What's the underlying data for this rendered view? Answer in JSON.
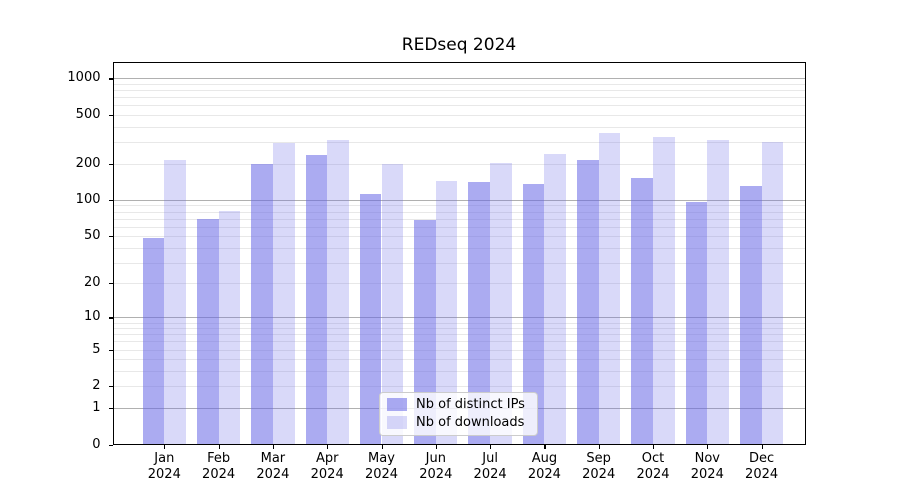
{
  "title": "REDseq 2024",
  "chart_data": {
    "type": "bar",
    "title": "REDseq 2024",
    "categories": [
      "Jan 2024",
      "Feb 2024",
      "Mar 2024",
      "Apr 2024",
      "May 2024",
      "Jun 2024",
      "Jul 2024",
      "Aug 2024",
      "Sep 2024",
      "Oct 2024",
      "Nov 2024",
      "Dec 2024"
    ],
    "series": [
      {
        "name": "Nb of distinct IPs",
        "color": "rgba(102,102,230,0.55)",
        "values": [
          48,
          70,
          200,
          235,
          112,
          68,
          142,
          135,
          213,
          151,
          96,
          131
        ]
      },
      {
        "name": "Nb of downloads",
        "color": "rgba(102,102,230,0.25)",
        "values": [
          215,
          81,
          296,
          310,
          199,
          144,
          203,
          240,
          357,
          330,
          310,
          301
        ]
      }
    ],
    "yscale": "log10(x+1)",
    "yticks": [
      0,
      1,
      2,
      5,
      10,
      20,
      50,
      100,
      200,
      500,
      1000
    ],
    "ylim": [
      0,
      1300
    ],
    "xlabel": "",
    "ylabel": "",
    "grid": true,
    "legend_position": "lower center"
  },
  "legend": {
    "items": [
      {
        "label": "Nb of distinct IPs"
      },
      {
        "label": "Nb of downloads"
      }
    ]
  },
  "axis": {
    "grid_minor_color": "#e8e8e8",
    "grid_major_color": "#b0b0b0",
    "spine_color": "#000000",
    "tick_label_color": "#000000"
  }
}
